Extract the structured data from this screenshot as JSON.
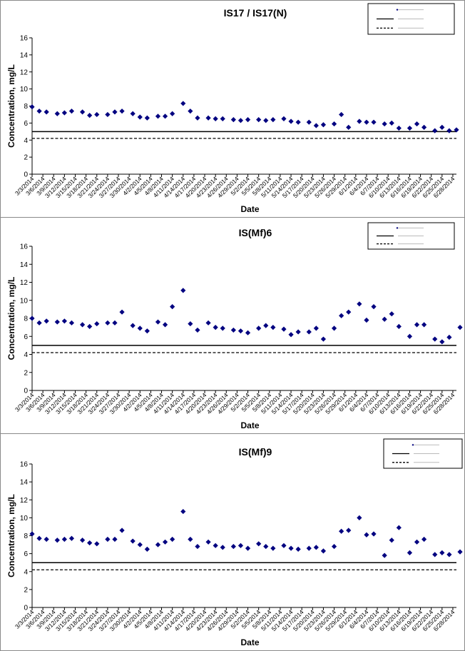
{
  "chart_data": [
    {
      "type": "scatter",
      "title": "IS17 / IS17(N)",
      "xlabel": "Date",
      "ylabel": "Concentration, mg/L",
      "ylim": [
        0,
        16
      ],
      "yticks": [
        0,
        2,
        4,
        6,
        8,
        10,
        12,
        14,
        16
      ],
      "xlim": [
        "3/3/2014",
        "6/29/2014"
      ],
      "xtick_labels": [
        "3/3/2014",
        "3/6/2014",
        "3/9/2014",
        "3/12/2014",
        "3/15/2014",
        "3/18/2014",
        "3/21/2014",
        "3/24/2014",
        "3/27/2014",
        "3/30/2014",
        "4/2/2014",
        "4/5/2014",
        "4/8/2014",
        "4/11/2014",
        "4/14/2014",
        "4/17/2014",
        "4/20/2014",
        "4/23/2014",
        "4/26/2014",
        "4/29/2014",
        "5/2/2014",
        "5/5/2014",
        "5/8/2014",
        "5/11/2014",
        "5/14/2014",
        "5/17/2014",
        "5/20/2014",
        "5/23/2014",
        "5/26/2014",
        "5/29/2014",
        "6/1/2014",
        "6/4/2014",
        "6/7/2014",
        "6/10/2014",
        "6/13/2014",
        "6/16/2014",
        "6/19/2014",
        "6/22/2014",
        "6/25/2014",
        "6/28/2014"
      ],
      "legend": {
        "placement": "top-right",
        "entries": []
      },
      "reference_lines": [
        {
          "y": 5.0,
          "style": "solid"
        },
        {
          "y": 4.2,
          "style": "dashed"
        }
      ],
      "series": [
        {
          "marker": "diamond",
          "color": "#000080",
          "x": [
            "3/3/2014",
            "3/5/2014",
            "3/7/2014",
            "3/10/2014",
            "3/12/2014",
            "3/14/2014",
            "3/17/2014",
            "3/19/2014",
            "3/21/2014",
            "3/24/2014",
            "3/26/2014",
            "3/28/2014",
            "3/31/2014",
            "4/2/2014",
            "4/4/2014",
            "4/7/2014",
            "4/9/2014",
            "4/11/2014",
            "4/14/2014",
            "4/16/2014",
            "4/18/2014",
            "4/21/2014",
            "4/23/2014",
            "4/25/2014",
            "4/28/2014",
            "4/30/2014",
            "5/2/2014",
            "5/5/2014",
            "5/7/2014",
            "5/9/2014",
            "5/12/2014",
            "5/14/2014",
            "5/16/2014",
            "5/19/2014",
            "5/21/2014",
            "5/23/2014",
            "5/26/2014",
            "5/28/2014",
            "5/30/2014",
            "6/2/2014",
            "6/4/2014",
            "6/6/2014",
            "6/9/2014",
            "6/11/2014",
            "6/13/2014",
            "6/16/2014",
            "6/18/2014",
            "6/20/2014",
            "6/23/2014",
            "6/25/2014",
            "6/27/2014",
            "6/29/2014"
          ],
          "y": [
            7.9,
            7.4,
            7.3,
            7.1,
            7.2,
            7.4,
            7.3,
            6.9,
            7.0,
            7.0,
            7.3,
            7.4,
            7.1,
            6.7,
            6.6,
            6.8,
            6.8,
            7.1,
            8.3,
            7.4,
            6.6,
            6.6,
            6.5,
            6.5,
            6.4,
            6.3,
            6.4,
            6.4,
            6.3,
            6.4,
            6.5,
            6.2,
            6.1,
            6.1,
            5.7,
            5.8,
            5.9,
            7.0,
            5.5,
            6.2,
            6.1,
            6.1,
            5.9,
            6.0,
            5.4,
            5.4,
            5.9,
            5.5,
            5.1,
            5.5,
            5.1,
            5.2
          ]
        }
      ]
    },
    {
      "type": "scatter",
      "title": "IS(Mf)6",
      "xlabel": "Date",
      "ylabel": "Concentration, mg/L",
      "ylim": [
        0,
        16
      ],
      "yticks": [
        0,
        2,
        4,
        6,
        8,
        10,
        12,
        14,
        16
      ],
      "xlim": [
        "3/3/2014",
        "6/29/2014"
      ],
      "xtick_labels": [
        "3/3/2014",
        "3/6/2014",
        "3/9/2014",
        "3/12/2014",
        "3/15/2014",
        "3/18/2014",
        "3/21/2014",
        "3/24/2014",
        "3/27/2014",
        "3/30/2014",
        "4/2/2014",
        "4/5/2014",
        "4/8/2014",
        "4/11/2014",
        "4/14/2014",
        "4/17/2014",
        "4/20/2014",
        "4/23/2014",
        "4/26/2014",
        "4/29/2014",
        "5/2/2014",
        "5/5/2014",
        "5/8/2014",
        "5/11/2014",
        "5/14/2014",
        "5/17/2014",
        "5/20/2014",
        "5/23/2014",
        "5/26/2014",
        "5/29/2014",
        "6/1/2014",
        "6/4/2014",
        "6/7/2014",
        "6/10/2014",
        "6/13/2014",
        "6/16/2014",
        "6/19/2014",
        "6/22/2014",
        "6/25/2014",
        "6/28/2014"
      ],
      "legend": {
        "placement": "top-right",
        "entries": []
      },
      "reference_lines": [
        {
          "y": 5.0,
          "style": "solid"
        },
        {
          "y": 4.2,
          "style": "dashed"
        }
      ],
      "series": [
        {
          "marker": "diamond",
          "color": "#000080",
          "x": [
            "3/3/2014",
            "3/5/2014",
            "3/7/2014",
            "3/10/2014",
            "3/12/2014",
            "3/14/2014",
            "3/17/2014",
            "3/19/2014",
            "3/21/2014",
            "3/24/2014",
            "3/26/2014",
            "3/28/2014",
            "3/31/2014",
            "4/2/2014",
            "4/4/2014",
            "4/7/2014",
            "4/9/2014",
            "4/11/2014",
            "4/14/2014",
            "4/16/2014",
            "4/18/2014",
            "4/21/2014",
            "4/23/2014",
            "4/25/2014",
            "4/28/2014",
            "4/30/2014",
            "5/2/2014",
            "5/5/2014",
            "5/7/2014",
            "5/9/2014",
            "5/12/2014",
            "5/14/2014",
            "5/16/2014",
            "5/19/2014",
            "5/21/2014",
            "5/23/2014",
            "5/26/2014",
            "5/28/2014",
            "5/30/2014",
            "6/2/2014",
            "6/4/2014",
            "6/6/2014",
            "6/9/2014",
            "6/11/2014",
            "6/13/2014",
            "6/16/2014",
            "6/18/2014",
            "6/20/2014",
            "6/23/2014",
            "6/25/2014",
            "6/27/2014",
            "6/30/2014"
          ],
          "y": [
            8.0,
            7.5,
            7.7,
            7.6,
            7.7,
            7.5,
            7.3,
            7.1,
            7.4,
            7.5,
            7.5,
            8.7,
            7.2,
            6.9,
            6.6,
            7.6,
            7.3,
            9.3,
            11.1,
            7.4,
            6.7,
            7.5,
            7.0,
            6.9,
            6.7,
            6.6,
            6.4,
            6.9,
            7.2,
            7.0,
            6.8,
            6.2,
            6.5,
            6.5,
            6.9,
            5.7,
            6.9,
            8.3,
            8.7,
            9.6,
            7.8,
            9.3,
            7.9,
            8.5,
            7.1,
            6.0,
            7.3,
            7.3,
            5.7,
            5.4,
            5.9,
            7.0
          ]
        }
      ]
    },
    {
      "type": "scatter",
      "title": "IS(Mf)9",
      "xlabel": "Date",
      "ylabel": "Concentration, mg/L",
      "ylim": [
        0,
        16
      ],
      "yticks": [
        0,
        2,
        4,
        6,
        8,
        10,
        12,
        14,
        16
      ],
      "xlim": [
        "3/3/2014",
        "6/29/2014"
      ],
      "xtick_labels": [
        "3/3/2014",
        "3/6/2014",
        "3/9/2014",
        "3/12/2014",
        "3/15/2014",
        "3/18/2014",
        "3/21/2014",
        "3/24/2014",
        "3/27/2014",
        "3/30/2014",
        "4/2/2014",
        "4/5/2014",
        "4/8/2014",
        "4/11/2014",
        "4/14/2014",
        "4/17/2014",
        "4/20/2014",
        "4/23/2014",
        "4/26/2014",
        "4/29/2014",
        "5/2/2014",
        "5/5/2014",
        "5/8/2014",
        "5/11/2014",
        "5/14/2014",
        "5/17/2014",
        "5/20/2014",
        "5/23/2014",
        "5/26/2014",
        "5/29/2014",
        "6/1/2014",
        "6/4/2014",
        "6/7/2014",
        "6/10/2014",
        "6/13/2014",
        "6/16/2014",
        "6/19/2014",
        "6/22/2014",
        "6/25/2014",
        "6/28/2014"
      ],
      "legend": {
        "placement": "top-right",
        "entries": []
      },
      "reference_lines": [
        {
          "y": 5.0,
          "style": "solid"
        },
        {
          "y": 4.2,
          "style": "dashed"
        }
      ],
      "series": [
        {
          "marker": "diamond",
          "color": "#000080",
          "x": [
            "3/3/2014",
            "3/5/2014",
            "3/7/2014",
            "3/10/2014",
            "3/12/2014",
            "3/14/2014",
            "3/17/2014",
            "3/19/2014",
            "3/21/2014",
            "3/24/2014",
            "3/26/2014",
            "3/28/2014",
            "3/31/2014",
            "4/2/2014",
            "4/4/2014",
            "4/7/2014",
            "4/9/2014",
            "4/11/2014",
            "4/14/2014",
            "4/16/2014",
            "4/18/2014",
            "4/21/2014",
            "4/23/2014",
            "4/25/2014",
            "4/28/2014",
            "4/30/2014",
            "5/2/2014",
            "5/5/2014",
            "5/7/2014",
            "5/9/2014",
            "5/12/2014",
            "5/14/2014",
            "5/16/2014",
            "5/19/2014",
            "5/21/2014",
            "5/23/2014",
            "5/26/2014",
            "5/28/2014",
            "5/30/2014",
            "6/2/2014",
            "6/4/2014",
            "6/6/2014",
            "6/9/2014",
            "6/11/2014",
            "6/13/2014",
            "6/16/2014",
            "6/18/2014",
            "6/20/2014",
            "6/23/2014",
            "6/25/2014",
            "6/27/2014",
            "6/30/2014"
          ],
          "y": [
            8.2,
            7.7,
            7.6,
            7.5,
            7.6,
            7.7,
            7.5,
            7.2,
            7.1,
            7.6,
            7.6,
            8.6,
            7.4,
            7.0,
            6.5,
            7.0,
            7.3,
            7.6,
            10.7,
            7.6,
            6.8,
            7.3,
            6.9,
            6.7,
            6.8,
            6.9,
            6.6,
            7.1,
            6.8,
            6.6,
            6.9,
            6.6,
            6.5,
            6.6,
            6.7,
            6.3,
            6.8,
            8.5,
            8.6,
            10.0,
            8.1,
            8.2,
            5.8,
            7.5,
            8.9,
            6.1,
            7.3,
            7.6,
            5.9,
            6.1,
            5.9,
            6.2
          ]
        }
      ]
    }
  ]
}
